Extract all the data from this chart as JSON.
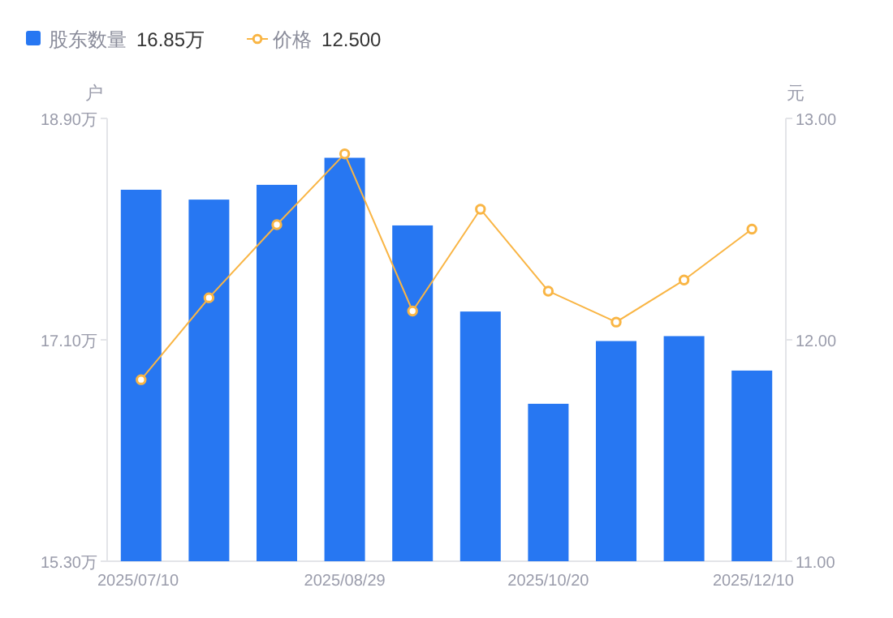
{
  "chart_data": {
    "type": "bar",
    "categories": [
      "2025/07/10",
      null,
      null,
      "2025/08/29",
      null,
      null,
      "2025/10/20",
      null,
      null,
      "2025/12/10"
    ],
    "series": [
      {
        "name": "股东数量",
        "color": "#2777f2",
        "values": [
          18.32,
          18.24,
          18.36,
          18.58,
          18.03,
          17.33,
          16.58,
          17.09,
          17.13,
          16.85
        ]
      },
      {
        "name": "价格",
        "color": "#f9b544",
        "type": "line",
        "axis": "y2",
        "marker": "circle",
        "values": [
          11.82,
          12.19,
          12.52,
          12.84,
          12.13,
          12.59,
          12.22,
          12.08,
          12.27,
          12.5
        ]
      }
    ],
    "ylabel": "户",
    "y2label": "元",
    "ylim": [
      15.3,
      18.9
    ],
    "yticks": [
      {
        "value": 15.3,
        "label": "15.30万"
      },
      {
        "value": 17.1,
        "label": "17.10万"
      },
      {
        "value": 18.9,
        "label": "18.90万"
      }
    ],
    "y2lim": [
      11,
      13
    ],
    "y2ticks": [
      {
        "value": 11,
        "label": "11.00"
      },
      {
        "value": 12,
        "label": "12.00"
      },
      {
        "value": 13,
        "label": "13.00"
      }
    ],
    "legend": "top left",
    "annotations": [
      "16.85万",
      "12.500"
    ]
  }
}
